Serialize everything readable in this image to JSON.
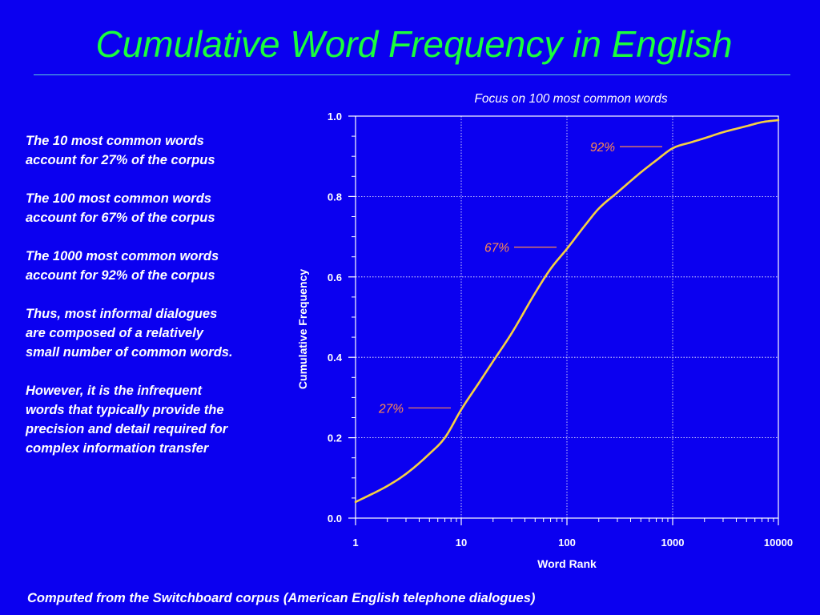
{
  "slide": {
    "title": "Cumulative Word Frequency in English",
    "footnote": "Computed from the Switchboard corpus (American English telephone dialogues)",
    "paragraphs": [
      "The 10 most common words\naccount for 27% of the corpus",
      "The 100 most common words\naccount for 67% of the corpus",
      "The 1000 most common words\naccount for 92% of the corpus",
      "Thus, most informal dialogues\nare composed of a relatively\nsmall number of common words.",
      "However, it is the infrequent\nwords that typically provide the\nprecision and detail required for\ncomplex information transfer"
    ],
    "colors": {
      "background": "#0b00f0",
      "title": "#19ff3c",
      "text": "#ffffff",
      "curve": "#f5d042",
      "annotation": "#ff8a50"
    }
  },
  "chart_data": {
    "type": "line",
    "title": "Focus on 100 most common words",
    "xlabel": "Word Rank",
    "ylabel": "Cumulative Frequency",
    "x_scale": "log",
    "xlim": [
      1,
      10000
    ],
    "ylim": [
      0.0,
      1.0
    ],
    "x_ticks": [
      1,
      10,
      100,
      1000,
      10000
    ],
    "x_tick_labels": [
      "1",
      "10",
      "100",
      "1000",
      "10000"
    ],
    "y_ticks": [
      0.0,
      0.2,
      0.4,
      0.6,
      0.8,
      1.0
    ],
    "y_tick_labels": [
      "0.0",
      "0.2",
      "0.4",
      "0.6",
      "0.8",
      "1.0"
    ],
    "grid": true,
    "series": [
      {
        "x": [
          1,
          2,
          3,
          5,
          7,
          10,
          15,
          20,
          30,
          50,
          70,
          100,
          150,
          200,
          300,
          500,
          700,
          1000,
          1500,
          2000,
          3000,
          5000,
          7000,
          10000
        ],
        "y": [
          0.04,
          0.08,
          0.11,
          0.16,
          0.2,
          0.27,
          0.34,
          0.39,
          0.46,
          0.56,
          0.62,
          0.67,
          0.73,
          0.77,
          0.81,
          0.86,
          0.89,
          0.92,
          0.935,
          0.945,
          0.96,
          0.975,
          0.985,
          0.99
        ]
      }
    ],
    "annotations": [
      {
        "text": "27%",
        "x": 10,
        "y": 0.27
      },
      {
        "text": "67%",
        "x": 100,
        "y": 0.67
      },
      {
        "text": "92%",
        "x": 1000,
        "y": 0.92
      }
    ]
  }
}
